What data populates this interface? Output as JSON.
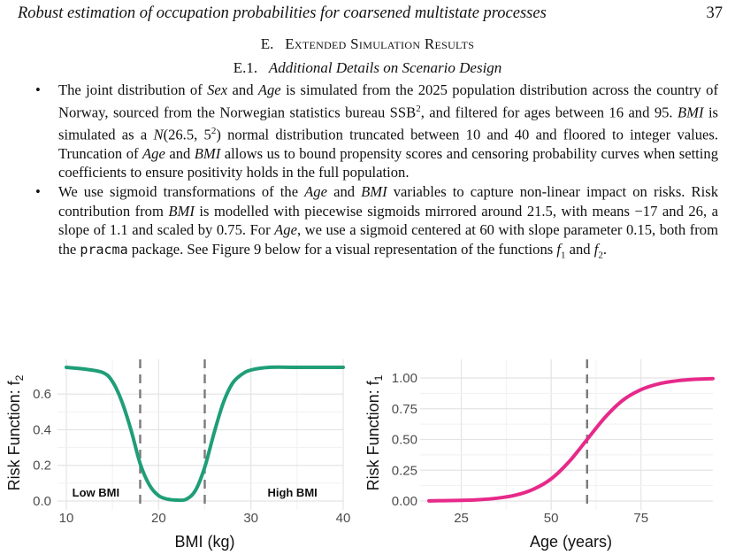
{
  "header": {
    "running_title": "Robust estimation of occupation probabilities for coarsened multistate processes",
    "page_number": "37"
  },
  "section": {
    "number": "E.",
    "title": "Extended Simulation Results"
  },
  "subsection": {
    "number": "E.1.",
    "title": "Additional Details on Scenario Design"
  },
  "bullets": [
    {
      "segments": [
        {
          "t": "The joint distribution of "
        },
        {
          "t": "Sex",
          "i": true
        },
        {
          "t": " and "
        },
        {
          "t": "Age",
          "i": true
        },
        {
          "t": " is simulated from the 2025 population distribution across the country of Norway, sourced from the Norwegian statistics bureau SSB"
        },
        {
          "t": "2",
          "sup": true
        },
        {
          "t": ", and filtered for ages between 16 and 95. "
        },
        {
          "t": "BMI",
          "i": true
        },
        {
          "t": " is simulated as a "
        },
        {
          "t": "N",
          "i": true
        },
        {
          "t": "(26.5, 5"
        },
        {
          "t": "2",
          "sup": true
        },
        {
          "t": ") normal distribution truncated between 10 and 40 and floored to integer values. Truncation of "
        },
        {
          "t": "Age",
          "i": true
        },
        {
          "t": " and "
        },
        {
          "t": "BMI",
          "i": true
        },
        {
          "t": " allows us to bound propensity scores and censoring probability curves when setting coefficients to ensure positivity holds in the full population."
        }
      ]
    },
    {
      "segments": [
        {
          "t": "We use sigmoid transformations of the "
        },
        {
          "t": "Age",
          "i": true
        },
        {
          "t": " and "
        },
        {
          "t": "BMI",
          "i": true
        },
        {
          "t": " variables to capture non-linear impact on risks. Risk contribution from "
        },
        {
          "t": "BMI",
          "i": true
        },
        {
          "t": " is modelled with piecewise sigmoids mirrored around 21.5, with means −17 and 26, a slope of 1.1 and scaled by 0.75. For "
        },
        {
          "t": "Age",
          "i": true
        },
        {
          "t": ", we use a sigmoid centered at 60 with slope parameter 0.15, both from the "
        },
        {
          "t": "pracma",
          "mono": true
        },
        {
          "t": " package. See Figure 9 below for a visual representation of the functions "
        },
        {
          "t": "f",
          "i": true
        },
        {
          "t": "1",
          "sub": true
        },
        {
          "t": " and "
        },
        {
          "t": "f",
          "i": true
        },
        {
          "t": "2",
          "sub": true
        },
        {
          "t": "."
        }
      ]
    }
  ],
  "chart_data": [
    {
      "type": "line",
      "xlabel": "BMI (kg)",
      "ylabel": "Risk Function: f",
      "ylabel_subscript": "2",
      "xlim": [
        10,
        40
      ],
      "ylim": [
        0,
        0.75
      ],
      "xticks": [
        10,
        20,
        30,
        40
      ],
      "yticks": [
        0.0,
        0.2,
        0.4,
        0.6
      ],
      "ytick_labels": [
        "0.0",
        "0.2",
        "0.4",
        "0.6"
      ],
      "grid": true,
      "series_color": "#1f9e77",
      "vlines": [
        18,
        25
      ],
      "annotations": [
        {
          "text": "Low BMI",
          "x": 13.2,
          "y": 0.05
        },
        {
          "text": "High BMI",
          "x": 34.5,
          "y": 0.05
        }
      ],
      "x": [
        10,
        12,
        14,
        15,
        16,
        17,
        18,
        19,
        20,
        21,
        22,
        23,
        24,
        25,
        26,
        27,
        28,
        29,
        30,
        32,
        35,
        40
      ],
      "y": [
        0.75,
        0.74,
        0.72,
        0.67,
        0.56,
        0.4,
        0.21,
        0.09,
        0.03,
        0.01,
        0.005,
        0.01,
        0.06,
        0.19,
        0.38,
        0.55,
        0.66,
        0.71,
        0.735,
        0.75,
        0.75,
        0.75
      ]
    },
    {
      "type": "line",
      "xlabel": "Age (years)",
      "ylabel": "Risk Function: f",
      "ylabel_subscript": "1",
      "xlim": [
        16,
        95
      ],
      "ylim": [
        0,
        1
      ],
      "xticks": [
        25,
        50,
        75
      ],
      "yticks": [
        0.0,
        0.25,
        0.5,
        0.75,
        1.0
      ],
      "ytick_labels": [
        "0.00",
        "0.25",
        "0.50",
        "0.75",
        "1.00"
      ],
      "grid": true,
      "series_color": "#e7298a",
      "vlines": [
        60
      ],
      "x": [
        16,
        20,
        25,
        30,
        35,
        40,
        45,
        50,
        55,
        60,
        65,
        70,
        75,
        80,
        85,
        90,
        95
      ],
      "y": [
        0.001,
        0.003,
        0.005,
        0.011,
        0.023,
        0.047,
        0.095,
        0.18,
        0.32,
        0.5,
        0.68,
        0.82,
        0.905,
        0.953,
        0.977,
        0.989,
        0.995
      ]
    }
  ]
}
